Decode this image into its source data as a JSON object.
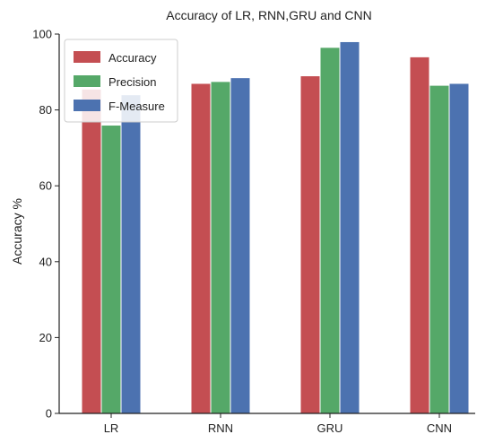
{
  "chart_data": {
    "type": "bar",
    "title": "Accuracy of LR, RNN,GRU and CNN",
    "xlabel": "",
    "ylabel": "Accuracy %",
    "categories": [
      "LR",
      "RNN",
      "GRU",
      "CNN"
    ],
    "series": [
      {
        "name": "Accuracy",
        "color": "#c44e52",
        "values": [
          85.5,
          87.0,
          89.0,
          94.0
        ]
      },
      {
        "name": "Precision",
        "color": "#55a868",
        "values": [
          76.0,
          87.5,
          96.5,
          86.5
        ]
      },
      {
        "name": "F-Measure",
        "color": "#4c72b0",
        "values": [
          84.0,
          88.5,
          98.0,
          87.0
        ]
      }
    ],
    "ylim": [
      0,
      100
    ],
    "yticks": [
      "0",
      "20",
      "40",
      "60",
      "80",
      "100"
    ],
    "grid": false,
    "legend_position": "top-left"
  }
}
